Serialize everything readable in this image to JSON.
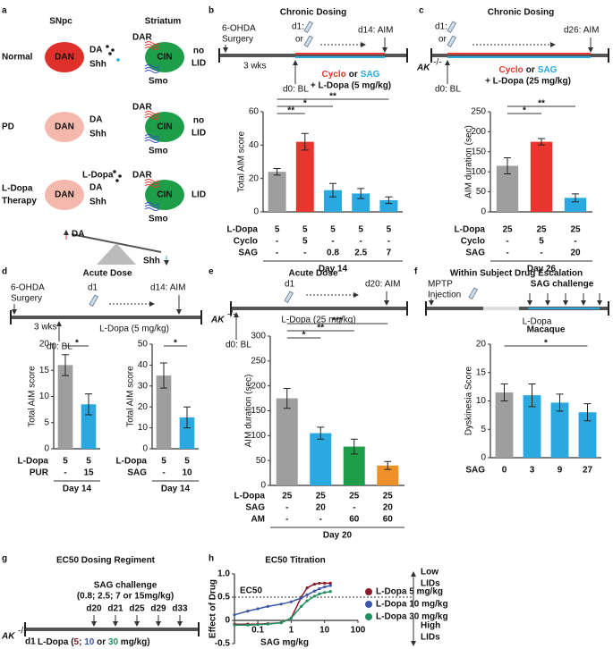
{
  "chart_data": [
    {
      "type": "bar",
      "ylabel": "Total AIM score",
      "ylim": [
        0,
        60
      ],
      "yticks": [
        0,
        20,
        40,
        60
      ],
      "values": [
        24,
        42,
        13,
        11,
        7
      ],
      "errors": [
        2,
        5,
        4,
        3,
        2
      ],
      "colors": [
        "#9e9e9e",
        "#e8352e",
        "#29a9e0",
        "#29a9e0",
        "#29a9e0"
      ],
      "table": [
        {
          "label": "L-Dopa",
          "cells": [
            "5",
            "5",
            "5",
            "5",
            "5"
          ]
        },
        {
          "label": "Cyclo",
          "cells": [
            "-",
            "5",
            "-",
            "-",
            "-"
          ]
        },
        {
          "label": "SAG",
          "cells": [
            "-",
            "-",
            "0.8",
            "2.5",
            "7"
          ]
        }
      ],
      "xlabel": "Day 14",
      "significance": [
        {
          "label": "**",
          "from": 0,
          "to": 1
        },
        {
          "label": "*",
          "from": 0,
          "to": 2
        },
        {
          "label": "**",
          "from": 0,
          "to": 4
        }
      ]
    },
    {
      "type": "bar",
      "ylabel": "AIM duration (sec)",
      "ylim": [
        0,
        250
      ],
      "yticks": [
        0,
        50,
        100,
        150,
        200,
        250
      ],
      "values": [
        115,
        175,
        35
      ],
      "errors": [
        20,
        8,
        10
      ],
      "colors": [
        "#9e9e9e",
        "#e8352e",
        "#29a9e0"
      ],
      "table": [
        {
          "label": "L-Dopa",
          "cells": [
            "25",
            "25",
            "25"
          ]
        },
        {
          "label": "Cyclo",
          "cells": [
            "-",
            "5",
            "-"
          ]
        },
        {
          "label": "SAG",
          "cells": [
            "-",
            "-",
            "20"
          ]
        }
      ],
      "xlabel": "Day 26",
      "significance": [
        {
          "label": "*",
          "from": 0,
          "to": 1
        },
        {
          "label": "**",
          "from": 0,
          "to": 2
        }
      ]
    },
    {
      "type": "bar",
      "ylabel": "Total AIM score",
      "ylim": [
        0,
        20
      ],
      "yticks": [
        0,
        5,
        10,
        15,
        20
      ],
      "values": [
        16,
        8.5
      ],
      "errors": [
        2,
        2
      ],
      "colors": [
        "#9e9e9e",
        "#29a9e0"
      ],
      "table": [
        {
          "label": "L-Dopa",
          "cells": [
            "5",
            "5"
          ]
        },
        {
          "label": "PUR",
          "cells": [
            "-",
            "15"
          ]
        }
      ],
      "xlabel": "Day 14",
      "significance": [
        {
          "label": "*",
          "from": 0,
          "to": 1
        }
      ]
    },
    {
      "type": "bar",
      "ylabel": "Total AIM score",
      "ylim": [
        0,
        50
      ],
      "yticks": [
        0,
        10,
        20,
        30,
        40,
        50
      ],
      "values": [
        35,
        15
      ],
      "errors": [
        6,
        5
      ],
      "colors": [
        "#9e9e9e",
        "#29a9e0"
      ],
      "table": [
        {
          "label": "L-Dopa",
          "cells": [
            "5",
            "5"
          ]
        },
        {
          "label": "SAG",
          "cells": [
            "-",
            "10"
          ]
        }
      ],
      "xlabel": "Day 14",
      "significance": [
        {
          "label": "*",
          "from": 0,
          "to": 1
        }
      ]
    },
    {
      "type": "bar",
      "ylabel": "AIM duration (sec)",
      "ylim": [
        0,
        300
      ],
      "yticks": [
        0,
        50,
        100,
        150,
        200,
        250,
        300
      ],
      "values": [
        175,
        105,
        78,
        40
      ],
      "errors": [
        20,
        12,
        15,
        8
      ],
      "colors": [
        "#9e9e9e",
        "#29a9e0",
        "#1f9e4a",
        "#f0902a"
      ],
      "table": [
        {
          "label": "L-Dopa",
          "cells": [
            "25",
            "25",
            "25",
            "25"
          ]
        },
        {
          "label": "SAG",
          "cells": [
            "-",
            "20",
            "-",
            "20"
          ]
        },
        {
          "label": "AM",
          "cells": [
            "-",
            "-",
            "60",
            "60"
          ]
        }
      ],
      "xlabel": "Day 20",
      "significance": [
        {
          "label": "*",
          "from": 0,
          "to": 1
        },
        {
          "label": "**",
          "from": 0,
          "to": 2
        },
        {
          "label": "***",
          "from": 0,
          "to": 3
        }
      ]
    },
    {
      "type": "bar",
      "title": "Macaque",
      "ylabel": "Dyskinesia Score",
      "ylim": [
        0,
        20
      ],
      "yticks": [
        0,
        5,
        10,
        15,
        20
      ],
      "values": [
        11.5,
        11,
        9.7,
        8
      ],
      "errors": [
        1.5,
        2,
        1.5,
        1.5
      ],
      "colors": [
        "#9e9e9e",
        "#29a9e0",
        "#29a9e0",
        "#29a9e0"
      ],
      "table": [
        {
          "label": "SAG",
          "cells": [
            "0",
            "3",
            "9",
            "27"
          ]
        }
      ],
      "significance": [
        {
          "label": "*",
          "from": 0,
          "to": 3
        }
      ]
    },
    {
      "type": "line",
      "title": "EC50 Titration",
      "xlabel": "SAG mg/kg",
      "ylabel": "Effect of Drug",
      "log_x": true,
      "xlim": [
        0.02,
        100
      ],
      "xticks": [
        0.1,
        1,
        10,
        100
      ],
      "ylim": [
        -0.5,
        1
      ],
      "yticks": [
        -0.5,
        0,
        0.5,
        {
          "value": 1,
          "label": "1.0"
        }
      ],
      "x": [
        0.02,
        0.05,
        0.1,
        0.2,
        0.5,
        1,
        2,
        3,
        5,
        7,
        10,
        15
      ],
      "series": [
        {
          "name": "L-Dopa 5 mg/kg",
          "color": "#8b1a2b",
          "values": [
            -0.08,
            -0.08,
            -0.08,
            -0.07,
            -0.05,
            0.05,
            0.5,
            0.7,
            0.78,
            0.8,
            0.8,
            0.8
          ]
        },
        {
          "name": "L-Dopa 10 mg/kg",
          "color": "#3a57a8",
          "values": [
            0.12,
            0.2,
            0.25,
            0.3,
            0.35,
            0.4,
            0.48,
            0.55,
            0.63,
            0.68,
            0.72,
            0.75
          ]
        },
        {
          "name": "L-Dopa 30 mg/kg",
          "color": "#1f8f5f",
          "values": [
            -0.1,
            -0.1,
            -0.09,
            -0.08,
            -0.05,
            0.05,
            0.3,
            0.42,
            0.52,
            0.57,
            0.6,
            0.62
          ]
        }
      ],
      "reference_line": {
        "value": 0.5,
        "label": "EC50"
      },
      "annotations": {
        "top": [
          "Low",
          "LIDs"
        ],
        "bottom": [
          "High",
          "LIDs"
        ]
      }
    }
  ],
  "panels": {
    "a": {
      "letter": "a",
      "snpc": "SNpc",
      "striatum": "Striatum",
      "rows": [
        {
          "label": [
            "Normal"
          ],
          "dan": "DAN",
          "da": "DA",
          "shh": "Shh",
          "dar": "DAR",
          "cin": "CIN",
          "smo": "Smo",
          "outcome": [
            "no",
            "LID"
          ]
        },
        {
          "label": [
            "PD"
          ],
          "dan": "DAN",
          "da": "DA",
          "shh": "Shh",
          "dar": "DAR",
          "cin": "CIN",
          "smo": "Smo",
          "outcome": [
            "no",
            "LID"
          ]
        },
        {
          "label": [
            "L-Dopa",
            "Therapy"
          ],
          "ldopa": "L-Dopa",
          "dan": "DAN",
          "da": "DA",
          "shh": "Shh",
          "dar": "DAR",
          "cin": "CIN",
          "smo": "Smo",
          "outcome": [
            "LID"
          ]
        }
      ],
      "balance": {
        "da": "DA",
        "shh": "Shh"
      }
    },
    "b": {
      "letter": "b",
      "title": "Chronic Dosing",
      "surgery": [
        "6-OHDA",
        "Surgery"
      ],
      "d1": "d1:",
      "or": "or",
      "end": "d14: AIM",
      "wks": "3 wks",
      "bl": "d0: BL",
      "treat": [
        "Cyclo",
        "or",
        "SAG"
      ],
      "ldopa": "+ L-Dopa (5 mg/kg)"
    },
    "c": {
      "letter": "c",
      "title": "Chronic Dosing",
      "d1": "d1:",
      "or": "or",
      "end": "d26: AIM",
      "ak": "AK",
      "ko": "-/-",
      "bl": "d0: BL",
      "treat": [
        "Cyclo",
        "or",
        "SAG"
      ],
      "ldopa": "+ L-Dopa (25 mg/kg)"
    },
    "d": {
      "letter": "d",
      "title": "Acute Dose",
      "surgery": [
        "6-OHDA",
        "Surgery"
      ],
      "d1": "d1",
      "end": "d14: AIM",
      "wks": "3 wks",
      "bl": "d0: BL",
      "ldopa": "L-Dopa (5 mg/kg)"
    },
    "e": {
      "letter": "e",
      "title": "Acute Dose",
      "d1": "d1",
      "end": "d20: AIM",
      "ak": "AK",
      "ko": "-/-",
      "bl": "d0: BL",
      "ldopa": "L-Dopa (25 mg/kg)"
    },
    "f": {
      "letter": "f",
      "title": "Within Subject Drug Escalation",
      "mptp": [
        "MPTP",
        "Injection"
      ],
      "challenge": "SAG challenge",
      "ldopa": "L-Dopa"
    },
    "g": {
      "letter": "g",
      "title": "EC50 Dosing Regiment",
      "challenge": "SAG challenge",
      "doses": "(0.8; 2.5; 7 or 15mg/kg)",
      "days": [
        "d20",
        "d21",
        "d25",
        "d29",
        "d33"
      ],
      "ak": "AK",
      "ko": "-/-",
      "d1": "d1",
      "ldopa": [
        "L-Dopa (",
        "5",
        "; ",
        "10",
        " or ",
        "30",
        " mg/kg)"
      ]
    },
    "h": {
      "letter": "h"
    }
  }
}
